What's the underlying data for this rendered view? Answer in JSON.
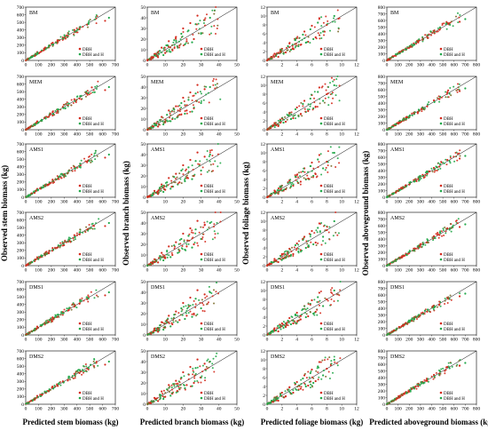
{
  "chart_data": {
    "type": "scatter",
    "layout": {
      "rows": 6,
      "columns": 4,
      "row_order": [
        "BM",
        "MEM",
        "AMS1",
        "AMS2",
        "DMS1",
        "DMS2"
      ]
    },
    "legend": {
      "entries": [
        "DBH",
        "DBH and H"
      ],
      "placement": "bottom-right",
      "colors": [
        "#d42b1e",
        "#23a84a"
      ]
    },
    "reference_line": "1:1",
    "point_colors": {
      "DBH": "#d42b1e",
      "DBH and H": "#23a84a",
      "overlap": "#7a6a2a"
    },
    "columns": [
      {
        "key": "stem",
        "xlabel": "Predicted stem biomass (kg)",
        "ylabel": "Observed stem biomass (kg)",
        "xlim": [
          0,
          700
        ],
        "ylim": [
          0,
          700
        ],
        "xticks": [
          "0",
          "100",
          "200",
          "300",
          "400",
          "500",
          "600",
          "700"
        ],
        "yticks": [
          "0",
          "100",
          "200",
          "300",
          "400",
          "500",
          "600",
          "700"
        ],
        "points_approx": {
          "DBH": [
            [
              20,
              25
            ],
            [
              45,
              50
            ],
            [
              70,
              60
            ],
            [
              90,
              110
            ],
            [
              120,
              115
            ],
            [
              150,
              160
            ],
            [
              180,
              170
            ],
            [
              210,
              230
            ],
            [
              250,
              240
            ],
            [
              290,
              300
            ],
            [
              330,
              320
            ],
            [
              380,
              400
            ],
            [
              420,
              410
            ],
            [
              480,
              470
            ],
            [
              620,
              520
            ]
          ],
          "DBH and H": [
            [
              25,
              20
            ],
            [
              50,
              45
            ],
            [
              75,
              80
            ],
            [
              95,
              90
            ],
            [
              125,
              130
            ],
            [
              155,
              150
            ],
            [
              185,
              195
            ],
            [
              215,
              205
            ],
            [
              255,
              265
            ],
            [
              295,
              285
            ],
            [
              335,
              345
            ],
            [
              385,
              375
            ],
            [
              425,
              440
            ],
            [
              490,
              480
            ],
            [
              650,
              560
            ]
          ]
        }
      },
      {
        "key": "branch",
        "xlabel": "Predicted branch biomass (kg)",
        "ylabel": "Observed branch biomass (kg)",
        "xlim": [
          0,
          50
        ],
        "ylim": [
          0,
          50
        ],
        "xticks": [
          "0",
          "10",
          "20",
          "30",
          "40",
          "50"
        ],
        "yticks": [
          "0",
          "10",
          "20",
          "30",
          "40",
          "50"
        ],
        "points_approx": {
          "DBH": [
            [
              2,
              1
            ],
            [
              4,
              6
            ],
            [
              6,
              3
            ],
            [
              8,
              12
            ],
            [
              10,
              7
            ],
            [
              12,
              18
            ],
            [
              14,
              10
            ],
            [
              16,
              22
            ],
            [
              18,
              14
            ],
            [
              20,
              30
            ],
            [
              22,
              18
            ],
            [
              24,
              35
            ],
            [
              26,
              20
            ],
            [
              28,
              42
            ],
            [
              32,
              38
            ]
          ],
          "DBH and H": [
            [
              3,
              2
            ],
            [
              5,
              4
            ],
            [
              7,
              9
            ],
            [
              9,
              5
            ],
            [
              11,
              14
            ],
            [
              13,
              8
            ],
            [
              15,
              19
            ],
            [
              17,
              12
            ],
            [
              19,
              25
            ],
            [
              21,
              15
            ],
            [
              23,
              28
            ],
            [
              25,
              17
            ],
            [
              27,
              34
            ],
            [
              30,
              25
            ],
            [
              35,
              40
            ]
          ]
        }
      },
      {
        "key": "foliage",
        "xlabel": "Predicted foliage biomass (kg)",
        "ylabel": "Observed foliage biomass (kg)",
        "xlim": [
          0,
          12
        ],
        "ylim": [
          0,
          12
        ],
        "xticks": [
          "0",
          "2",
          "4",
          "6",
          "8",
          "10",
          "12"
        ],
        "yticks": [
          "0",
          "2",
          "4",
          "6",
          "8",
          "10",
          "12"
        ],
        "points_approx": {
          "DBH": [
            [
              0.5,
              0.4
            ],
            [
              1,
              1.5
            ],
            [
              1.5,
              0.8
            ],
            [
              2,
              2.6
            ],
            [
              2.5,
              1.8
            ],
            [
              3,
              3.8
            ],
            [
              3.5,
              2.6
            ],
            [
              4,
              5
            ],
            [
              4.5,
              3.5
            ],
            [
              5,
              6.5
            ],
            [
              5.5,
              4.2
            ],
            [
              6,
              7.8
            ],
            [
              6.5,
              5.2
            ],
            [
              7,
              9.5
            ],
            [
              8,
              8
            ]
          ],
          "DBH and H": [
            [
              0.6,
              0.8
            ],
            [
              1.2,
              1
            ],
            [
              1.8,
              2.2
            ],
            [
              2.2,
              1.6
            ],
            [
              2.8,
              3.2
            ],
            [
              3.2,
              2.4
            ],
            [
              3.8,
              4.6
            ],
            [
              4.2,
              3.2
            ],
            [
              4.8,
              5.8
            ],
            [
              5.2,
              4
            ],
            [
              5.8,
              7
            ],
            [
              6.2,
              4.8
            ],
            [
              6.8,
              8.5
            ],
            [
              7.5,
              6.5
            ],
            [
              9,
              10
            ]
          ]
        }
      },
      {
        "key": "aboveground",
        "xlabel": "Predicted aboveground biomass (kg)",
        "ylabel": "Observed aboveground biomass (kg)",
        "xlim": [
          0,
          800
        ],
        "ylim": [
          0,
          800
        ],
        "xticks": [
          "0",
          "100",
          "200",
          "300",
          "400",
          "500",
          "600",
          "700",
          "800"
        ],
        "yticks": [
          "0",
          "100",
          "200",
          "300",
          "400",
          "500",
          "600",
          "700",
          "800"
        ],
        "points_approx": {
          "DBH": [
            [
              20,
              25
            ],
            [
              50,
              55
            ],
            [
              80,
              70
            ],
            [
              110,
              120
            ],
            [
              140,
              135
            ],
            [
              170,
              180
            ],
            [
              200,
              190
            ],
            [
              240,
              255
            ],
            [
              280,
              270
            ],
            [
              320,
              335
            ],
            [
              360,
              350
            ],
            [
              420,
              440
            ],
            [
              470,
              460
            ],
            [
              540,
              560
            ],
            [
              650,
              580
            ]
          ],
          "DBH and H": [
            [
              25,
              20
            ],
            [
              55,
              50
            ],
            [
              85,
              90
            ],
            [
              115,
              105
            ],
            [
              145,
              155
            ],
            [
              175,
              165
            ],
            [
              205,
              215
            ],
            [
              245,
              235
            ],
            [
              285,
              300
            ],
            [
              325,
              315
            ],
            [
              365,
              380
            ],
            [
              425,
              415
            ],
            [
              475,
              495
            ],
            [
              560,
              540
            ],
            [
              700,
              620
            ]
          ]
        }
      }
    ]
  }
}
